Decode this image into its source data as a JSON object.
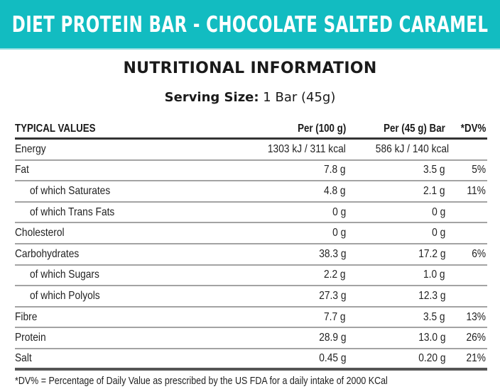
{
  "banner": {
    "title": "DIET PROTEIN BAR - CHOCOLATE SALTED CARAMEL",
    "background_color": "#12bcc1",
    "text_color": "#ffffff"
  },
  "section": {
    "title": "NUTRITIONAL INFORMATION",
    "serving_label": "Serving Size:",
    "serving_value": " 1 Bar (45g)"
  },
  "table": {
    "headers": {
      "typical": "TYPICAL VALUES",
      "per100": "Per (100 g)",
      "per45": "Per (45 g) Bar",
      "dv": "*DV%"
    },
    "rows": [
      {
        "label": "Energy",
        "indent": false,
        "per100": "1303 kJ / 311 kcal",
        "per45": "586 kJ / 140 kcal",
        "dv": ""
      },
      {
        "label": "Fat",
        "indent": false,
        "per100": "7.8 g",
        "per45": "3.5 g",
        "dv": "5%"
      },
      {
        "label": "of which Saturates",
        "indent": true,
        "per100": "4.8 g",
        "per45": "2.1 g",
        "dv": "11%"
      },
      {
        "label": "of which Trans Fats",
        "indent": true,
        "per100": "0 g",
        "per45": "0 g",
        "dv": ""
      },
      {
        "label": "Cholesterol",
        "indent": false,
        "per100": "0 g",
        "per45": "0 g",
        "dv": ""
      },
      {
        "label": "Carbohydrates",
        "indent": false,
        "per100": "38.3 g",
        "per45": "17.2 g",
        "dv": "6%"
      },
      {
        "label": "of which Sugars",
        "indent": true,
        "per100": "2.2 g",
        "per45": "1.0 g",
        "dv": ""
      },
      {
        "label": "of which Polyols",
        "indent": true,
        "per100": "27.3 g",
        "per45": "12.3 g",
        "dv": ""
      },
      {
        "label": "Fibre",
        "indent": false,
        "per100": "7.7 g",
        "per45": "3.5 g",
        "dv": "13%"
      },
      {
        "label": "Protein",
        "indent": false,
        "per100": "28.9 g",
        "per45": "13.0 g",
        "dv": "26%"
      },
      {
        "label": "Salt",
        "indent": false,
        "per100": "0.45 g",
        "per45": "0.20 g",
        "dv": "21%"
      }
    ]
  },
  "footnote": "*DV% = Percentage of Daily Value as prescribed by the US FDA for a daily intake of 2000 KCal"
}
